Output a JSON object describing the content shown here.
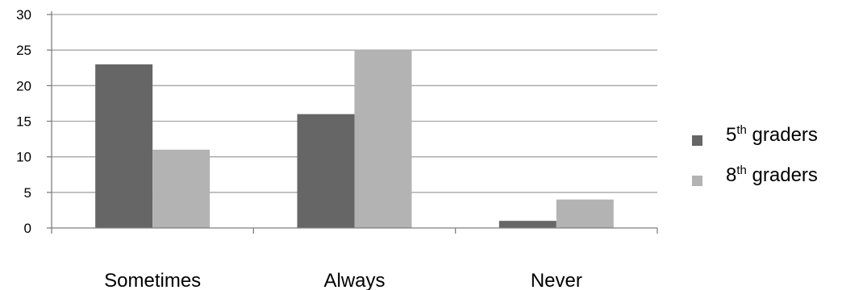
{
  "chart_data": {
    "type": "bar",
    "title": "",
    "xlabel": "",
    "ylabel": "",
    "categories": [
      "Sometimes",
      "Always",
      "Never"
    ],
    "series": [
      {
        "name": "5th graders",
        "ordinal": "5",
        "suffix": "th",
        "label": "graders",
        "color": "#666666",
        "values": [
          23,
          16,
          1
        ]
      },
      {
        "name": "8th graders",
        "ordinal": "8",
        "suffix": "th",
        "label": "graders",
        "color": "#b3b3b3",
        "values": [
          11,
          25,
          4
        ]
      }
    ],
    "ylim": [
      0,
      30
    ],
    "yticks": [
      0,
      5,
      10,
      15,
      20,
      25,
      30
    ],
    "grid": true,
    "legend_position": "right"
  }
}
